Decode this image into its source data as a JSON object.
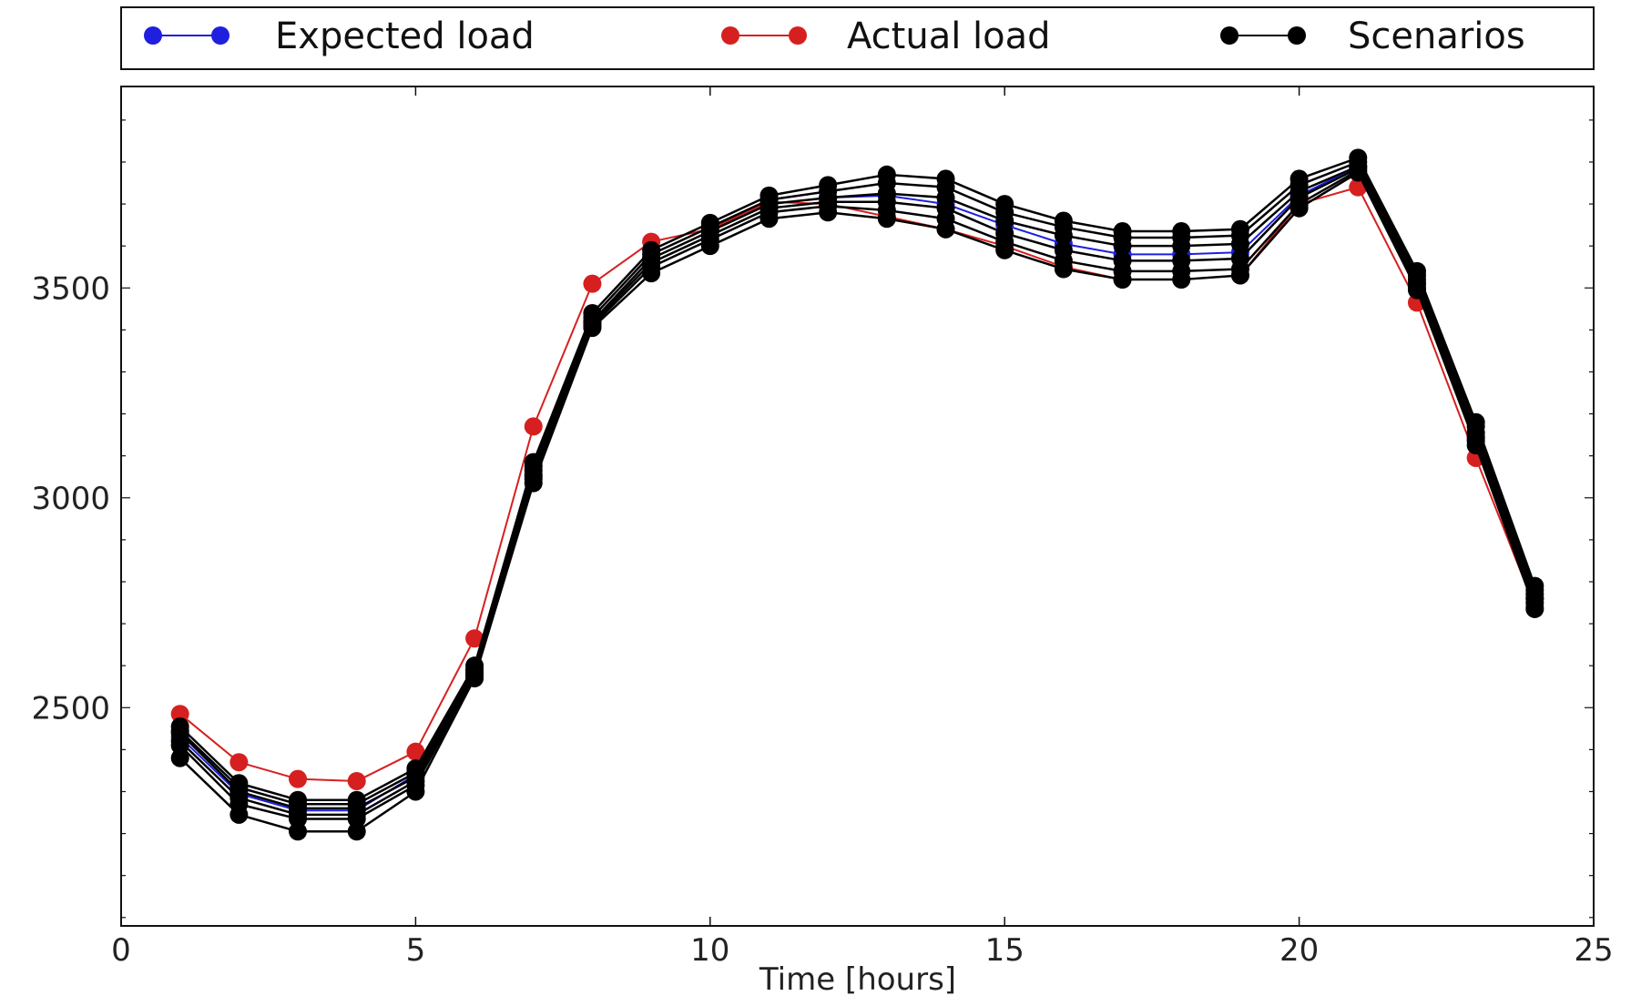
{
  "chart_data": {
    "type": "line",
    "title": "",
    "xlabel": "Time [hours]",
    "ylabel": "",
    "xlim": [
      0,
      25
    ],
    "ylim": [
      1980,
      3980
    ],
    "xticks": [
      0,
      5,
      10,
      15,
      20,
      25
    ],
    "yticks": [
      2500,
      3000,
      3500
    ],
    "grid": false,
    "legend_position": "top",
    "x": [
      1,
      2,
      3,
      4,
      5,
      6,
      7,
      8,
      9,
      10,
      11,
      12,
      13,
      14,
      15,
      16,
      17,
      18,
      19,
      20,
      21,
      22,
      23,
      24
    ],
    "series": [
      {
        "name": "Expected load",
        "color": "#1f1fdf",
        "values": [
          2430,
          2295,
          2255,
          2255,
          2340,
          2590,
          3050,
          3420,
          3570,
          3635,
          3700,
          3715,
          3720,
          3700,
          3650,
          3605,
          3580,
          3580,
          3585,
          3720,
          3790,
          3510,
          3140,
          2760
        ]
      },
      {
        "name": "Actual load",
        "color": "#d62020",
        "values": [
          2485,
          2370,
          2330,
          2325,
          2395,
          2665,
          3170,
          3510,
          3610,
          3640,
          3705,
          3700,
          3670,
          3640,
          3600,
          3550,
          3520,
          3520,
          3530,
          3700,
          3740,
          3465,
          3095,
          2740
        ]
      },
      {
        "name": "Scenarios",
        "color": "#000000",
        "members": [
          [
            2455,
            2320,
            2280,
            2280,
            2355,
            2600,
            3085,
            3440,
            3590,
            3655,
            3720,
            3745,
            3770,
            3760,
            3700,
            3660,
            3635,
            3635,
            3640,
            3760,
            3810,
            3540,
            3180,
            2790
          ],
          [
            2445,
            2310,
            2270,
            2270,
            2345,
            2590,
            3075,
            3430,
            3580,
            3645,
            3710,
            3730,
            3750,
            3740,
            3680,
            3645,
            3620,
            3620,
            3625,
            3745,
            3800,
            3530,
            3170,
            2780
          ],
          [
            2440,
            2300,
            2260,
            2260,
            2335,
            2585,
            3065,
            3420,
            3570,
            3635,
            3700,
            3715,
            3725,
            3715,
            3660,
            3625,
            3600,
            3600,
            3605,
            3730,
            3790,
            3520,
            3155,
            2770
          ],
          [
            2420,
            2285,
            2245,
            2245,
            2325,
            2580,
            3055,
            3415,
            3560,
            3625,
            3690,
            3705,
            3705,
            3690,
            3630,
            3590,
            3565,
            3565,
            3570,
            3715,
            3785,
            3510,
            3145,
            2760
          ],
          [
            2410,
            2270,
            2235,
            2235,
            2315,
            2575,
            3045,
            3410,
            3550,
            3615,
            3680,
            3695,
            3685,
            3665,
            3610,
            3565,
            3540,
            3540,
            3545,
            3700,
            3780,
            3500,
            3135,
            2750
          ],
          [
            2380,
            2245,
            2205,
            2205,
            2300,
            2570,
            3035,
            3405,
            3535,
            3600,
            3665,
            3680,
            3665,
            3640,
            3590,
            3545,
            3520,
            3520,
            3530,
            3690,
            3775,
            3495,
            3125,
            2735
          ]
        ]
      }
    ]
  }
}
